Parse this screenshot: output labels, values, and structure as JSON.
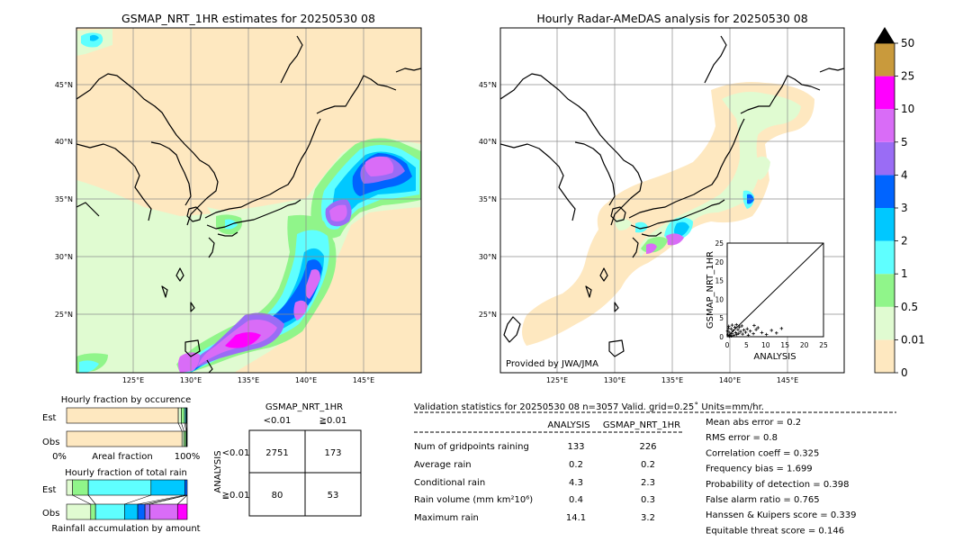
{
  "left_map": {
    "title": "GSMAP_NRT_1HR estimates for 20250530 08",
    "lon_ticks": [
      "125°E",
      "130°E",
      "135°E",
      "140°E",
      "145°E"
    ],
    "lat_ticks": [
      "45°N",
      "40°N",
      "35°N",
      "30°N",
      "25°N"
    ]
  },
  "right_map": {
    "title": "Hourly Radar-AMeDAS analysis for 20250530 08",
    "lon_ticks": [
      "125°E",
      "130°E",
      "135°E",
      "140°E",
      "145°E"
    ],
    "lat_ticks": [
      "45°N",
      "40°N",
      "35°N",
      "30°N",
      "25°N"
    ],
    "credit": "Provided by JWA/JMA"
  },
  "colorbar": {
    "labels": [
      "0",
      "0.01",
      "0.5",
      "1",
      "2",
      "3",
      "4",
      "5",
      "10",
      "25",
      "50"
    ],
    "colors": [
      "#fee8c0",
      "#e0fbd1",
      "#90f58a",
      "#5fffff",
      "#00c8ff",
      "#0064ff",
      "#9a6cf5",
      "#d96cf7",
      "#ff00ff",
      "#c99a3c"
    ]
  },
  "scatter": {
    "xlabel": "ANALYSIS",
    "ylabel": "GSMAP_NRT_1HR",
    "ticks": [
      "0",
      "5",
      "10",
      "15",
      "20",
      "25"
    ],
    "range": [
      0,
      25
    ]
  },
  "occurrence": {
    "title": "Hourly fraction by occurence",
    "row_labels": [
      "Est",
      "Obs"
    ],
    "axis_left": "0%",
    "axis_mid": "Areal fraction",
    "axis_right": "100%"
  },
  "total_rain": {
    "title": "Hourly fraction of total rain",
    "row_labels": [
      "Est",
      "Obs"
    ],
    "footer": "Rainfall accumulation by amount"
  },
  "contingency": {
    "title": "GSMAP_NRT_1HR",
    "col_labels": [
      "<0.01",
      "≧0.01"
    ],
    "row_axis": "ANALYSIS",
    "row_labels": [
      "<0.01",
      "≧0.01"
    ],
    "cells": [
      [
        "2751",
        "173"
      ],
      [
        "80",
        "53"
      ]
    ]
  },
  "validation": {
    "header": "Validation statistics for 20250530 08  n=3057 Valid. grid=0.25˚ Units=mm/hr.",
    "col_analysis": "ANALYSIS",
    "col_gsmap": "GSMAP_NRT_1HR",
    "rows": [
      {
        "label": "Num of gridpoints raining",
        "analysis": "133",
        "gsmap": "226"
      },
      {
        "label": "Average rain",
        "analysis": "0.2",
        "gsmap": "0.2"
      },
      {
        "label": "Conditional rain",
        "analysis": "4.3",
        "gsmap": "2.3"
      },
      {
        "label": "Rain volume (mm km²10⁶)",
        "analysis": "0.4",
        "gsmap": "0.3"
      },
      {
        "label": "Maximum rain",
        "analysis": "14.1",
        "gsmap": "3.2"
      }
    ],
    "scores": [
      "Mean abs error =    0.2",
      "RMS error =    0.8",
      "Correlation coeff =  0.325",
      "Frequency bias =  1.699",
      "Probability of detection =  0.398",
      "False alarm ratio =  0.765",
      "Hanssen & Kuipers score =  0.339",
      "Equitable threat score =  0.146"
    ]
  },
  "chart_data": [
    {
      "type": "heatmap",
      "title": "GSMAP_NRT_1HR estimates for 20250530 08",
      "x_ticks": [
        "125°E",
        "130°E",
        "135°E",
        "140°E",
        "145°E"
      ],
      "y_ticks": [
        "45°N",
        "40°N",
        "35°N",
        "30°N",
        "25°N"
      ]
    },
    {
      "type": "heatmap",
      "title": "Hourly Radar-AMeDAS analysis for 20250530 08",
      "x_ticks": [
        "125°E",
        "130°E",
        "135°E",
        "140°E",
        "145°E"
      ],
      "y_ticks": [
        "45°N",
        "40°N",
        "35°N",
        "30°N",
        "25°N"
      ]
    },
    {
      "type": "scatter",
      "xlabel": "ANALYSIS",
      "ylabel": "GSMAP_NRT_1HR",
      "xlim": [
        0,
        25
      ],
      "ylim": [
        0,
        25
      ],
      "points": [
        [
          0.2,
          0.5
        ],
        [
          0.5,
          1.2
        ],
        [
          0.8,
          0.3
        ],
        [
          1,
          2.1
        ],
        [
          1.2,
          0.8
        ],
        [
          1.5,
          1.6
        ],
        [
          1.8,
          0.4
        ],
        [
          2,
          2.5
        ],
        [
          2.2,
          1.1
        ],
        [
          2.5,
          0.6
        ],
        [
          2.8,
          1.9
        ],
        [
          3,
          0.9
        ],
        [
          3.2,
          2.6
        ],
        [
          3.5,
          1.4
        ],
        [
          4,
          0.7
        ],
        [
          4.3,
          1.8
        ],
        [
          4.8,
          1.2
        ],
        [
          5.2,
          2.1
        ],
        [
          6,
          1.5
        ],
        [
          6.8,
          0.8
        ],
        [
          7.5,
          1.9
        ],
        [
          8,
          2.4
        ],
        [
          9,
          1.1
        ],
        [
          10.2,
          0.6
        ],
        [
          11.5,
          1.7
        ],
        [
          12.8,
          1.0
        ],
        [
          14.1,
          2.2
        ],
        [
          0.4,
          2.8
        ],
        [
          1.3,
          3.1
        ],
        [
          2.4,
          3.2
        ],
        [
          0.6,
          0.1
        ],
        [
          1.1,
          0.2
        ],
        [
          0.1,
          1.5
        ],
        [
          0.3,
          2.2
        ],
        [
          3.8,
          2.9
        ],
        [
          5.5,
          0.4
        ],
        [
          7,
          3.0
        ]
      ]
    },
    {
      "type": "bar",
      "title": "Hourly fraction by occurence",
      "categories": [
        "Est",
        "Obs"
      ],
      "series": [
        {
          "values": [
            0.926,
            0.957
          ]
        },
        {
          "values": [
            0.025,
            0.017
          ]
        },
        {
          "values": [
            0.027,
            0.016
          ]
        },
        {
          "values": [
            0.012,
            0.006
          ]
        },
        {
          "values": [
            0.006,
            0.003
          ]
        },
        {
          "values": [
            0.004,
            0.001
          ]
        }
      ],
      "colors": [
        "#fee8c0",
        "#e0fbd1",
        "#90f58a",
        "#5fffff",
        "#00c8ff",
        "#0064ff"
      ]
    },
    {
      "type": "bar",
      "title": "Hourly fraction of total rain",
      "categories": [
        "Est",
        "Obs"
      ],
      "series": [
        {
          "values": [
            0.05,
            0.2
          ]
        },
        {
          "values": [
            0.13,
            0.04
          ]
        },
        {
          "values": [
            0.52,
            0.24
          ]
        },
        {
          "values": [
            0.28,
            0.11
          ]
        },
        {
          "values": [
            0.02,
            0.06
          ]
        },
        {
          "values": [
            0.0,
            0.04
          ]
        },
        {
          "values": [
            0.0,
            0.23
          ]
        },
        {
          "values": [
            0.0,
            0.08
          ]
        }
      ],
      "colors": [
        "#e0fbd1",
        "#90f58a",
        "#5fffff",
        "#00c8ff",
        "#0064ff",
        "#9a6cf5",
        "#d96cf7",
        "#ff00ff"
      ]
    }
  ]
}
